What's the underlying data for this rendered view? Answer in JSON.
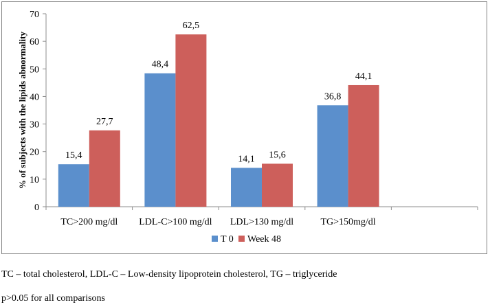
{
  "chart_data": {
    "type": "bar",
    "title": "",
    "xlabel": "",
    "ylabel": "% of subjects with the lipids abnormality",
    "ylim": [
      0,
      70
    ],
    "yticks": [
      0,
      10,
      20,
      30,
      40,
      50,
      60,
      70
    ],
    "categories": [
      "TC>200 mg/dl",
      "LDL-C>100 mg/dl",
      "LDL>130 mg/dl",
      "TG>150mg/dl"
    ],
    "series": [
      {
        "name": "T 0",
        "color": "#5b8fcc",
        "values": [
          15.4,
          48.4,
          14.1,
          36.8
        ],
        "labels": [
          "15,4",
          "48,4",
          "14,1",
          "36,8"
        ]
      },
      {
        "name": "Week 48",
        "color": "#cd5f5b",
        "values": [
          27.7,
          62.5,
          15.6,
          44.1
        ],
        "labels": [
          "27,7",
          "62,5",
          "15,6",
          "44,1"
        ]
      }
    ],
    "legend_position": "bottom-center",
    "grid": false
  },
  "captions": {
    "line1": "TC – total cholesterol, LDL-C – Low-density lipoprotein cholesterol, TG – triglyceride",
    "line2": "p>0.05 for all comparisons"
  }
}
